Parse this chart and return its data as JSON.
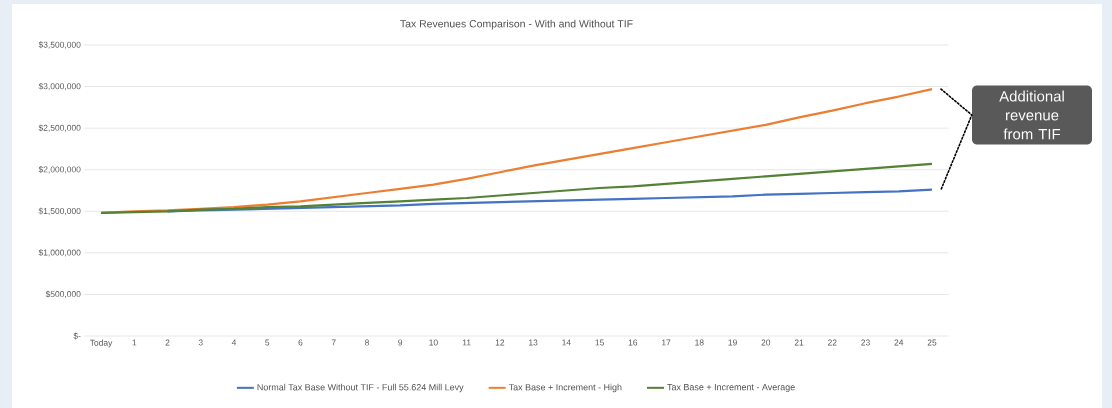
{
  "chart_data": {
    "type": "line",
    "title": "Tax Revenues Comparison - With and Without TIF",
    "categories": [
      "Today",
      "1",
      "2",
      "3",
      "4",
      "5",
      "6",
      "7",
      "8",
      "9",
      "10",
      "11",
      "12",
      "13",
      "14",
      "15",
      "16",
      "17",
      "18",
      "19",
      "20",
      "21",
      "22",
      "23",
      "24",
      "25"
    ],
    "series": [
      {
        "name": "Normal Tax Base Without TIF - Full 55.624 Mill Levy",
        "color": "#4472c4",
        "values": [
          null,
          null,
          1500000,
          1510000,
          1520000,
          1530000,
          1540000,
          1550000,
          1560000,
          1570000,
          1590000,
          1600000,
          1610000,
          1620000,
          1630000,
          1640000,
          1650000,
          1660000,
          1670000,
          1680000,
          1700000,
          1710000,
          1720000,
          1730000,
          1740000,
          1760000
        ]
      },
      {
        "name": "Tax Base + Increment - High",
        "color": "#ed7d31",
        "values": [
          1480000,
          1500000,
          1510000,
          1530000,
          1550000,
          1580000,
          1620000,
          1670000,
          1720000,
          1770000,
          1820000,
          1890000,
          1970000,
          2050000,
          2120000,
          2190000,
          2260000,
          2330000,
          2400000,
          2470000,
          2540000,
          2630000,
          2710000,
          2800000,
          2880000,
          2970000
        ]
      },
      {
        "name": "Tax Base + Increment - Average",
        "color": "#548235",
        "values": [
          1480000,
          1490000,
          1500000,
          1520000,
          1530000,
          1550000,
          1560000,
          1580000,
          1600000,
          1620000,
          1640000,
          1660000,
          1690000,
          1720000,
          1750000,
          1780000,
          1800000,
          1830000,
          1860000,
          1890000,
          1920000,
          1950000,
          1980000,
          2010000,
          2040000,
          2070000
        ]
      }
    ],
    "ylim": [
      0,
      3500000
    ],
    "yticks": [
      {
        "value": 0,
        "label": "$-"
      },
      {
        "value": 500000,
        "label": "$500,000"
      },
      {
        "value": 1000000,
        "label": "$1,000,000"
      },
      {
        "value": 1500000,
        "label": "$1,500,000"
      },
      {
        "value": 2000000,
        "label": "$2,000,000"
      },
      {
        "value": 2500000,
        "label": "$2,500,000"
      },
      {
        "value": 3000000,
        "label": "$3,000,000"
      },
      {
        "value": 3500000,
        "label": "$3,500,000"
      }
    ],
    "grid": "y",
    "legend": "bottom",
    "marker": "none",
    "line_style": "solid",
    "annotations": [
      "Additional revenue from TIF"
    ]
  }
}
